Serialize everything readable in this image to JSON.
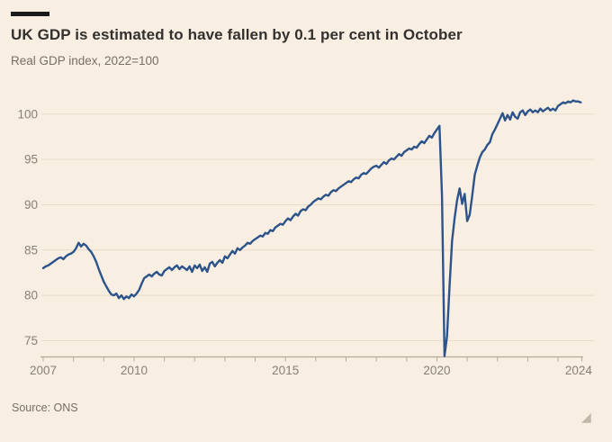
{
  "header": {
    "title": "UK GDP is estimated to have fallen by 0.1 per cent in October",
    "subtitle": "Real GDP index, 2022=100"
  },
  "footer": {
    "source": "Source: ONS",
    "resize_handle_glyph": "◢"
  },
  "colors": {
    "background": "#f9eee2",
    "accent_bar": "#1a1a1a",
    "title_text": "#33302e",
    "muted_text": "#786e64",
    "tick_label": "#8a7f73",
    "gridline": "#eadbc9",
    "axis": "#b7a999",
    "line": "#2c548a"
  },
  "chart_data": {
    "type": "line",
    "title": "UK GDP is estimated to have fallen by 0.1 per cent in October",
    "subtitle": "Real GDP index, 2022=100",
    "source": "Source: ONS",
    "xlabel": "",
    "ylabel": "Real GDP index, 2022=100",
    "frequency": "monthly",
    "x_start": "2007-01",
    "x_end": "2024-10",
    "xlim": [
      2007.0,
      2024.83
    ],
    "ylim": [
      73.2,
      101.9
    ],
    "grid": "horizontal-only",
    "legend": "none",
    "y_ticks": [
      75,
      80,
      85,
      90,
      95,
      100
    ],
    "x_minor_tick_years": [
      2007,
      2008,
      2009,
      2010,
      2011,
      2012,
      2013,
      2014,
      2015,
      2016,
      2017,
      2018,
      2019,
      2020,
      2021,
      2022,
      2023,
      2024
    ],
    "x_labels": [
      {
        "text": "2007",
        "t": 2007.0
      },
      {
        "text": "2010",
        "t": 2010.0
      },
      {
        "text": "2015",
        "t": 2015.0
      },
      {
        "text": "2020",
        "t": 2020.0
      },
      {
        "text": "2024",
        "t": 2024.68
      }
    ],
    "series_name": "UK real GDP index",
    "values": [
      83.0,
      83.2,
      83.3,
      83.5,
      83.7,
      83.9,
      84.1,
      84.2,
      84.0,
      84.3,
      84.5,
      84.6,
      84.8,
      85.2,
      85.8,
      85.4,
      85.7,
      85.5,
      85.1,
      84.8,
      84.3,
      83.7,
      82.9,
      82.2,
      81.5,
      81.0,
      80.5,
      80.1,
      80.0,
      80.2,
      79.7,
      80.0,
      79.6,
      79.9,
      79.7,
      80.1,
      79.9,
      80.2,
      80.6,
      81.3,
      81.9,
      82.1,
      82.3,
      82.1,
      82.4,
      82.6,
      82.3,
      82.2,
      82.7,
      82.9,
      83.1,
      82.8,
      83.1,
      83.3,
      82.9,
      83.2,
      83.0,
      82.8,
      83.2,
      82.6,
      83.3,
      83.0,
      83.4,
      82.7,
      83.1,
      82.6,
      83.5,
      83.7,
      83.2,
      83.6,
      83.9,
      83.6,
      84.3,
      84.1,
      84.5,
      84.9,
      84.6,
      85.2,
      85.0,
      85.3,
      85.5,
      85.8,
      85.7,
      86.0,
      86.2,
      86.4,
      86.6,
      86.5,
      86.9,
      86.8,
      87.2,
      87.1,
      87.5,
      87.7,
      87.9,
      87.8,
      88.2,
      88.5,
      88.3,
      88.7,
      89.0,
      88.8,
      89.3,
      89.5,
      89.4,
      89.8,
      90.0,
      90.3,
      90.5,
      90.7,
      90.6,
      90.9,
      91.1,
      91.0,
      91.4,
      91.6,
      91.5,
      91.8,
      92.0,
      92.2,
      92.4,
      92.6,
      92.5,
      92.8,
      93.0,
      92.9,
      93.3,
      93.5,
      93.4,
      93.7,
      94.0,
      94.2,
      94.3,
      94.1,
      94.4,
      94.7,
      94.5,
      94.9,
      95.1,
      95.0,
      95.3,
      95.6,
      95.4,
      95.8,
      96.0,
      96.2,
      96.1,
      96.4,
      96.3,
      96.7,
      97.0,
      96.8,
      97.2,
      97.6,
      97.4,
      97.9,
      98.3,
      98.7,
      91.0,
      73.3,
      75.5,
      81.0,
      86.0,
      88.5,
      90.5,
      91.8,
      90.1,
      91.2,
      88.2,
      88.9,
      91.0,
      93.3,
      94.3,
      95.2,
      95.8,
      96.1,
      96.6,
      96.9,
      97.8,
      98.3,
      98.9,
      99.5,
      100.1,
      99.3,
      99.9,
      99.4,
      100.2,
      99.7,
      99.5,
      100.2,
      100.4,
      99.9,
      100.3,
      100.5,
      100.2,
      100.4,
      100.2,
      100.6,
      100.3,
      100.5,
      100.7,
      100.4,
      100.6,
      100.4,
      100.9,
      101.1,
      101.3,
      101.2,
      101.4,
      101.3,
      101.5,
      101.4,
      101.4,
      101.3
    ]
  }
}
